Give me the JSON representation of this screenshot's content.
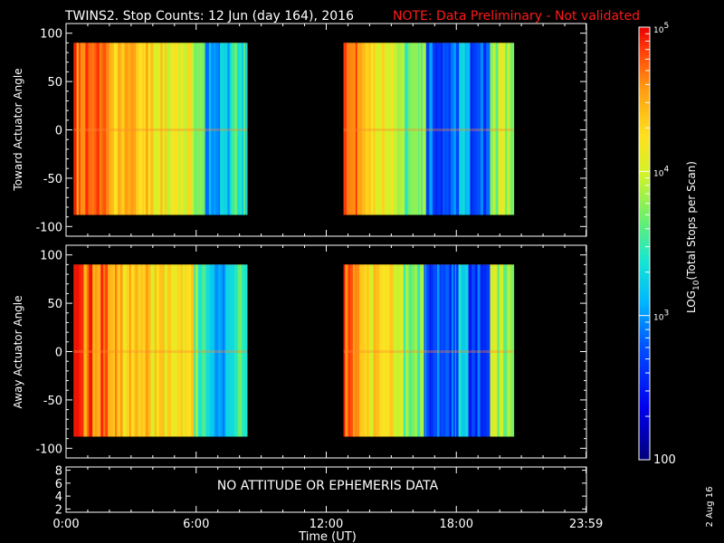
{
  "title": "TWINS2. Stop Counts: 12 Jun (day 164), 2016",
  "note": "NOTE: Data Preliminary - Not validated",
  "date_stamp": "2 Aug 16",
  "colors": {
    "background": "#000000",
    "foreground": "#ffffff",
    "note": "#ff1a1a"
  },
  "chart_data": [
    {
      "type": "heatmap",
      "name": "toward-panel",
      "ylabel": "Toward Actuator Angle",
      "ylim": [
        -110,
        110
      ],
      "yticks": [
        100,
        50,
        0,
        -50,
        -100
      ],
      "xlim_hours": [
        0,
        24
      ],
      "data_y_range": [
        -88,
        90
      ],
      "data_blocks_hours": [
        [
          0.35,
          8.35
        ],
        [
          12.8,
          20.65
        ]
      ]
    },
    {
      "type": "heatmap",
      "name": "away-panel",
      "ylabel": "Away Actuator Angle",
      "ylim": [
        -110,
        110
      ],
      "yticks": [
        100,
        50,
        0,
        -50,
        -100
      ],
      "xlim_hours": [
        0,
        24
      ],
      "data_y_range": [
        -88,
        90
      ],
      "data_blocks_hours": [
        [
          0.35,
          8.35
        ],
        [
          12.8,
          20.65
        ]
      ]
    },
    {
      "type": "line",
      "name": "attitude-panel",
      "ylim": [
        1.5,
        8.5
      ],
      "yticks": [
        8,
        6,
        4,
        2
      ],
      "message": "NO ATTITUDE OR EPHEMERIS DATA"
    }
  ],
  "xaxis": {
    "label": "Time (UT)",
    "ticks_hours": [
      0,
      6,
      12,
      18,
      23.983
    ],
    "tick_labels": [
      "0:00",
      "6:00",
      "12:00",
      "18:00",
      "23:59"
    ]
  },
  "colorbar": {
    "label": "LOG10(Total Stops per Scan)",
    "label_parts": [
      "LOG",
      "10",
      "(Total Stops per Scan)"
    ],
    "range": [
      100,
      100000
    ],
    "scale": "log",
    "ticks": [
      {
        "value": 100000,
        "base": "10",
        "exp": "5",
        "label": "10^5"
      },
      {
        "value": 10000,
        "base": "10",
        "exp": "4",
        "label": "10^4"
      },
      {
        "value": 1000,
        "base": "10",
        "exp": "3",
        "label": "10^3"
      },
      {
        "value": 100,
        "label": "100"
      }
    ]
  }
}
